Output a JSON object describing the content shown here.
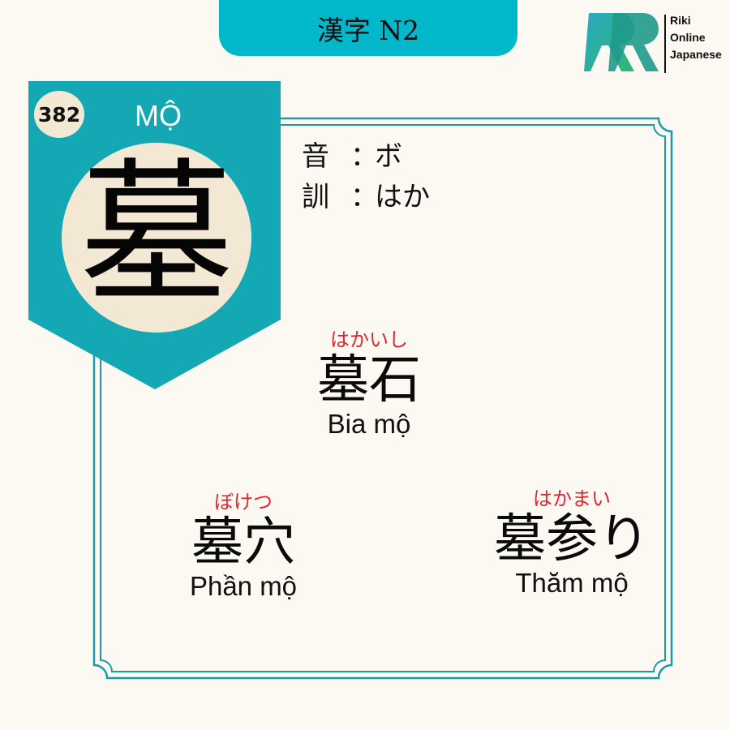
{
  "header": {
    "title": "漢字 N2"
  },
  "logo": {
    "line1": "Riki",
    "line2": "Online",
    "line3": "Japanese"
  },
  "card": {
    "number": "382",
    "vietnamese_reading": "MỘ",
    "kanji": "墓",
    "on_label": "音",
    "on_reading": "ボ",
    "kun_label": "訓",
    "kun_reading": "はか",
    "separator": "："
  },
  "vocabulary": [
    {
      "furigana": "はかいし",
      "word": "墓石",
      "meaning": "Bia mộ"
    },
    {
      "furigana": "ぼけつ",
      "word": "墓穴",
      "meaning": "Phần mộ"
    },
    {
      "furigana": "はかまい",
      "word": "墓参り",
      "meaning": "Thăm mộ"
    }
  ],
  "colors": {
    "teal": "#00b8c9",
    "banner_teal": "#13a8b4",
    "frame": "#1b9aa8",
    "cream": "#f3e8d4",
    "furigana_red": "#e0262d",
    "background": "#fcf9f3"
  }
}
